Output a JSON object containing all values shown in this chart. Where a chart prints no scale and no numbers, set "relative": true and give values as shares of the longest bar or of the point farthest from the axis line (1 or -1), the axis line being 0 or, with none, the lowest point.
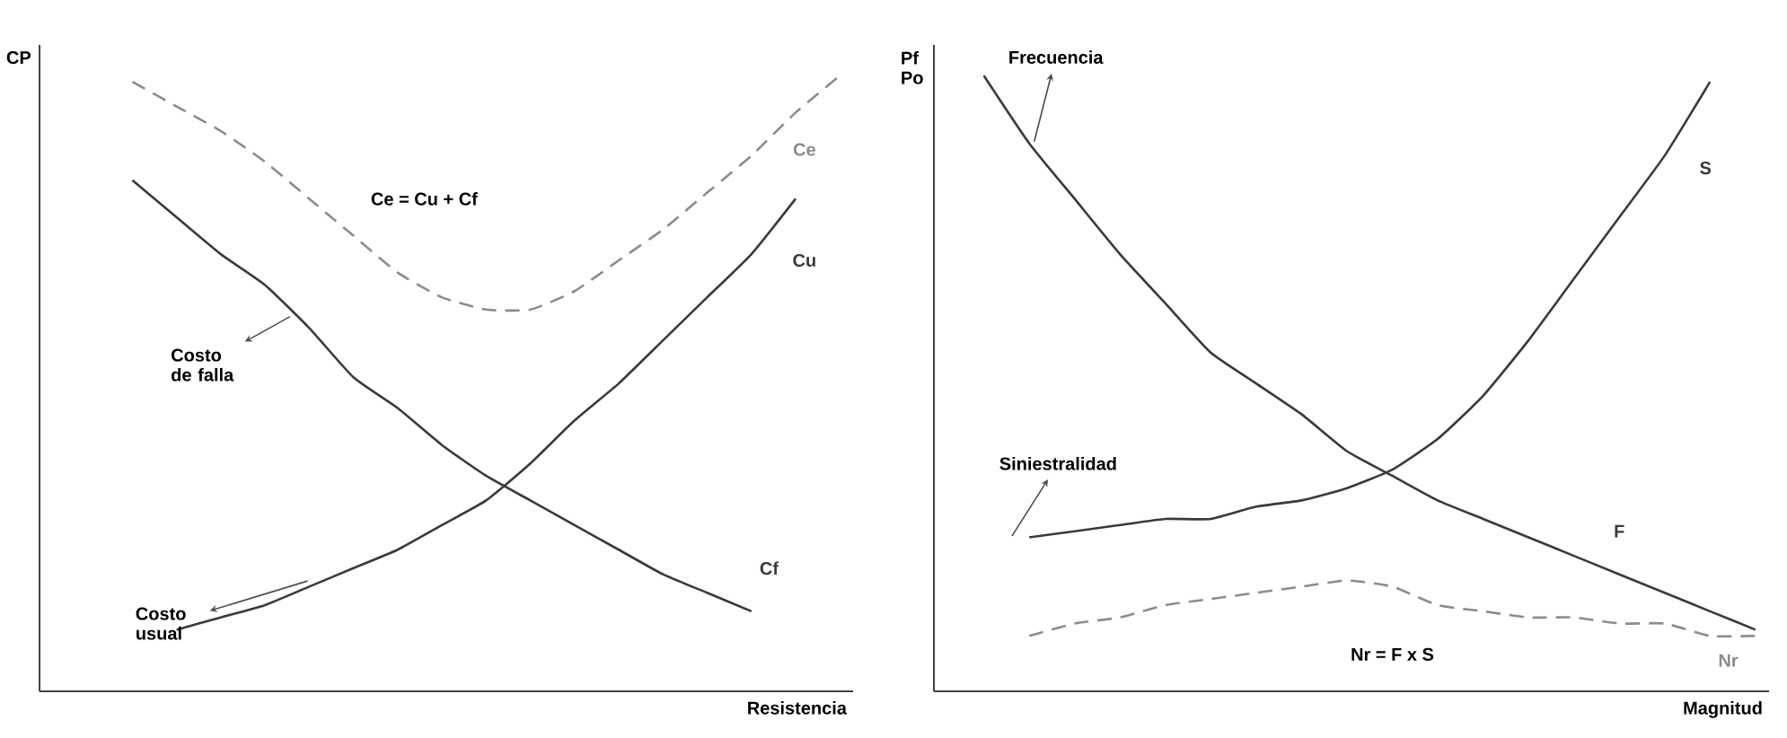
{
  "chart_data": [
    {
      "type": "line",
      "relative": true,
      "marker": "none",
      "xlabel": "Resistencia",
      "ylabel": "CP",
      "categories": [
        null,
        null,
        null,
        null,
        null,
        null,
        null,
        null,
        null,
        null,
        null,
        null,
        null,
        null,
        null,
        null,
        null,
        null
      ],
      "series": [
        {
          "name": "Ce",
          "color": "#8c8c8c",
          "line_style": "dashed",
          "values": [
            null,
            0.99,
            0.95,
            0.91,
            0.86,
            0.8,
            0.74,
            0.68,
            0.64,
            0.62,
            0.62,
            0.65,
            0.7,
            0.75,
            0.81,
            0.87,
            0.94,
            1.0
          ]
        },
        {
          "name": "Cu",
          "color": "#3a3a3a",
          "line_style": "solid",
          "values": [
            null,
            null,
            0.1,
            0.12,
            0.14,
            0.17,
            0.2,
            0.23,
            0.27,
            0.31,
            0.37,
            0.44,
            0.5,
            0.57,
            0.64,
            0.71,
            0.8,
            null
          ]
        },
        {
          "name": "Cf",
          "color": "#3a3a3a",
          "line_style": "solid",
          "values": [
            null,
            0.83,
            0.77,
            0.71,
            0.66,
            0.59,
            0.51,
            0.46,
            0.4,
            0.35,
            0.31,
            0.27,
            0.23,
            0.19,
            0.16,
            0.13,
            null,
            null
          ]
        }
      ],
      "annotations": [
        "Ce = Cu + Cf",
        "Costo de falla",
        "Costo usual"
      ]
    },
    {
      "type": "line",
      "relative": true,
      "marker": "none",
      "xlabel": "Magnitud",
      "ylabel": "Pf Po",
      "categories": [
        null,
        null,
        null,
        null,
        null,
        null,
        null,
        null,
        null,
        null,
        null,
        null,
        null,
        null,
        null,
        null,
        null,
        null
      ],
      "series": [
        {
          "name": "S",
          "color": "#3a3a3a",
          "line_style": "solid",
          "values": [
            null,
            0.25,
            0.26,
            0.27,
            0.28,
            0.28,
            0.3,
            0.31,
            0.33,
            0.36,
            0.41,
            0.48,
            0.57,
            0.67,
            0.77,
            0.87,
            0.99,
            null
          ]
        },
        {
          "name": "F",
          "color": "#3a3a3a",
          "line_style": "solid",
          "values": [
            1.0,
            0.89,
            0.8,
            0.71,
            0.63,
            0.55,
            0.5,
            0.45,
            0.39,
            0.35,
            0.31,
            0.28,
            0.25,
            0.22,
            0.19,
            0.16,
            0.13,
            0.1
          ]
        },
        {
          "name": "Nr",
          "color": "#8c8c8c",
          "line_style": "dashed",
          "values": [
            null,
            0.09,
            0.11,
            0.12,
            0.14,
            0.15,
            0.16,
            0.17,
            0.18,
            0.17,
            0.14,
            0.13,
            0.12,
            0.12,
            0.11,
            0.11,
            0.09,
            0.09
          ]
        }
      ],
      "annotations": [
        "Frecuencia",
        "Siniestralidad",
        "Nr = F x S"
      ]
    }
  ]
}
